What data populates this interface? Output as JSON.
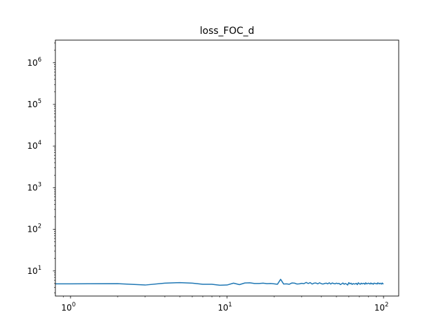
{
  "chart_data": {
    "type": "line",
    "title": "loss_FOC_d",
    "xlabel": "",
    "ylabel": "",
    "xscale": "log",
    "yscale": "log",
    "xlim": [
      0.8,
      125
    ],
    "ylim": [
      2.5,
      3500000
    ],
    "grid": false,
    "legend": "none",
    "x_ticks": [
      {
        "value": 1,
        "base": "10",
        "exp": "0"
      },
      {
        "value": 10,
        "base": "10",
        "exp": "1"
      },
      {
        "value": 100,
        "base": "10",
        "exp": "2"
      }
    ],
    "y_ticks": [
      {
        "value": 10,
        "base": "10",
        "exp": "1"
      },
      {
        "value": 100,
        "base": "10",
        "exp": "2"
      },
      {
        "value": 1000,
        "base": "10",
        "exp": "3"
      },
      {
        "value": 10000,
        "base": "10",
        "exp": "4"
      },
      {
        "value": 100000,
        "base": "10",
        "exp": "5"
      },
      {
        "value": 1000000,
        "base": "10",
        "exp": "6"
      }
    ],
    "series": [
      {
        "color": "#1f77b4",
        "x": [
          0.5,
          1,
          2,
          3,
          4,
          5,
          6,
          7,
          8,
          9,
          10,
          11,
          12,
          13,
          14,
          15,
          16,
          17,
          18,
          19,
          20,
          21,
          22,
          23,
          24,
          25,
          26,
          27,
          28,
          29,
          30,
          31,
          32,
          33,
          34,
          35,
          36,
          37,
          38,
          39,
          40,
          41,
          42,
          43,
          44,
          45,
          46,
          47,
          48,
          49,
          50,
          51,
          52,
          53,
          54,
          55,
          56,
          57,
          58,
          59,
          60,
          61,
          62,
          63,
          64,
          65,
          66,
          67,
          68,
          69,
          70,
          71,
          72,
          73,
          74,
          75,
          76,
          77,
          78,
          79,
          80,
          81,
          82,
          83,
          84,
          85,
          86,
          87,
          88,
          89,
          90,
          91,
          92,
          93,
          94,
          95,
          96,
          97,
          98,
          99,
          100
        ],
        "y": [
          4.9,
          4.9,
          4.95,
          4.6,
          5.1,
          5.25,
          5.1,
          4.8,
          4.8,
          4.55,
          4.6,
          5.1,
          4.7,
          5.15,
          5.2,
          5.0,
          5.0,
          5.1,
          4.95,
          5.0,
          4.9,
          4.8,
          6.3,
          4.85,
          4.9,
          4.8,
          5.15,
          5.1,
          4.85,
          4.9,
          5.05,
          4.95,
          5.3,
          5.0,
          5.25,
          4.85,
          5.1,
          5.15,
          4.9,
          5.2,
          4.95,
          4.85,
          5.0,
          5.1,
          4.9,
          5.2,
          4.85,
          5.15,
          5.0,
          4.9,
          5.1,
          4.95,
          5.05,
          4.7,
          4.9,
          5.15,
          4.8,
          5.0,
          4.85,
          4.6,
          5.25,
          4.9,
          5.1,
          4.75,
          5.0,
          4.85,
          4.9,
          5.05,
          4.7,
          5.2,
          4.95,
          4.8,
          5.1,
          4.9,
          5.0,
          5.05,
          4.8,
          5.2,
          4.9,
          4.95,
          5.1,
          5.0,
          4.85,
          5.15,
          4.9,
          5.0,
          4.8,
          5.1,
          5.05,
          4.95,
          5.0,
          4.85,
          5.2,
          5.0,
          4.9,
          5.1,
          4.95,
          4.85,
          5.15,
          4.9,
          4.95
        ]
      }
    ]
  }
}
